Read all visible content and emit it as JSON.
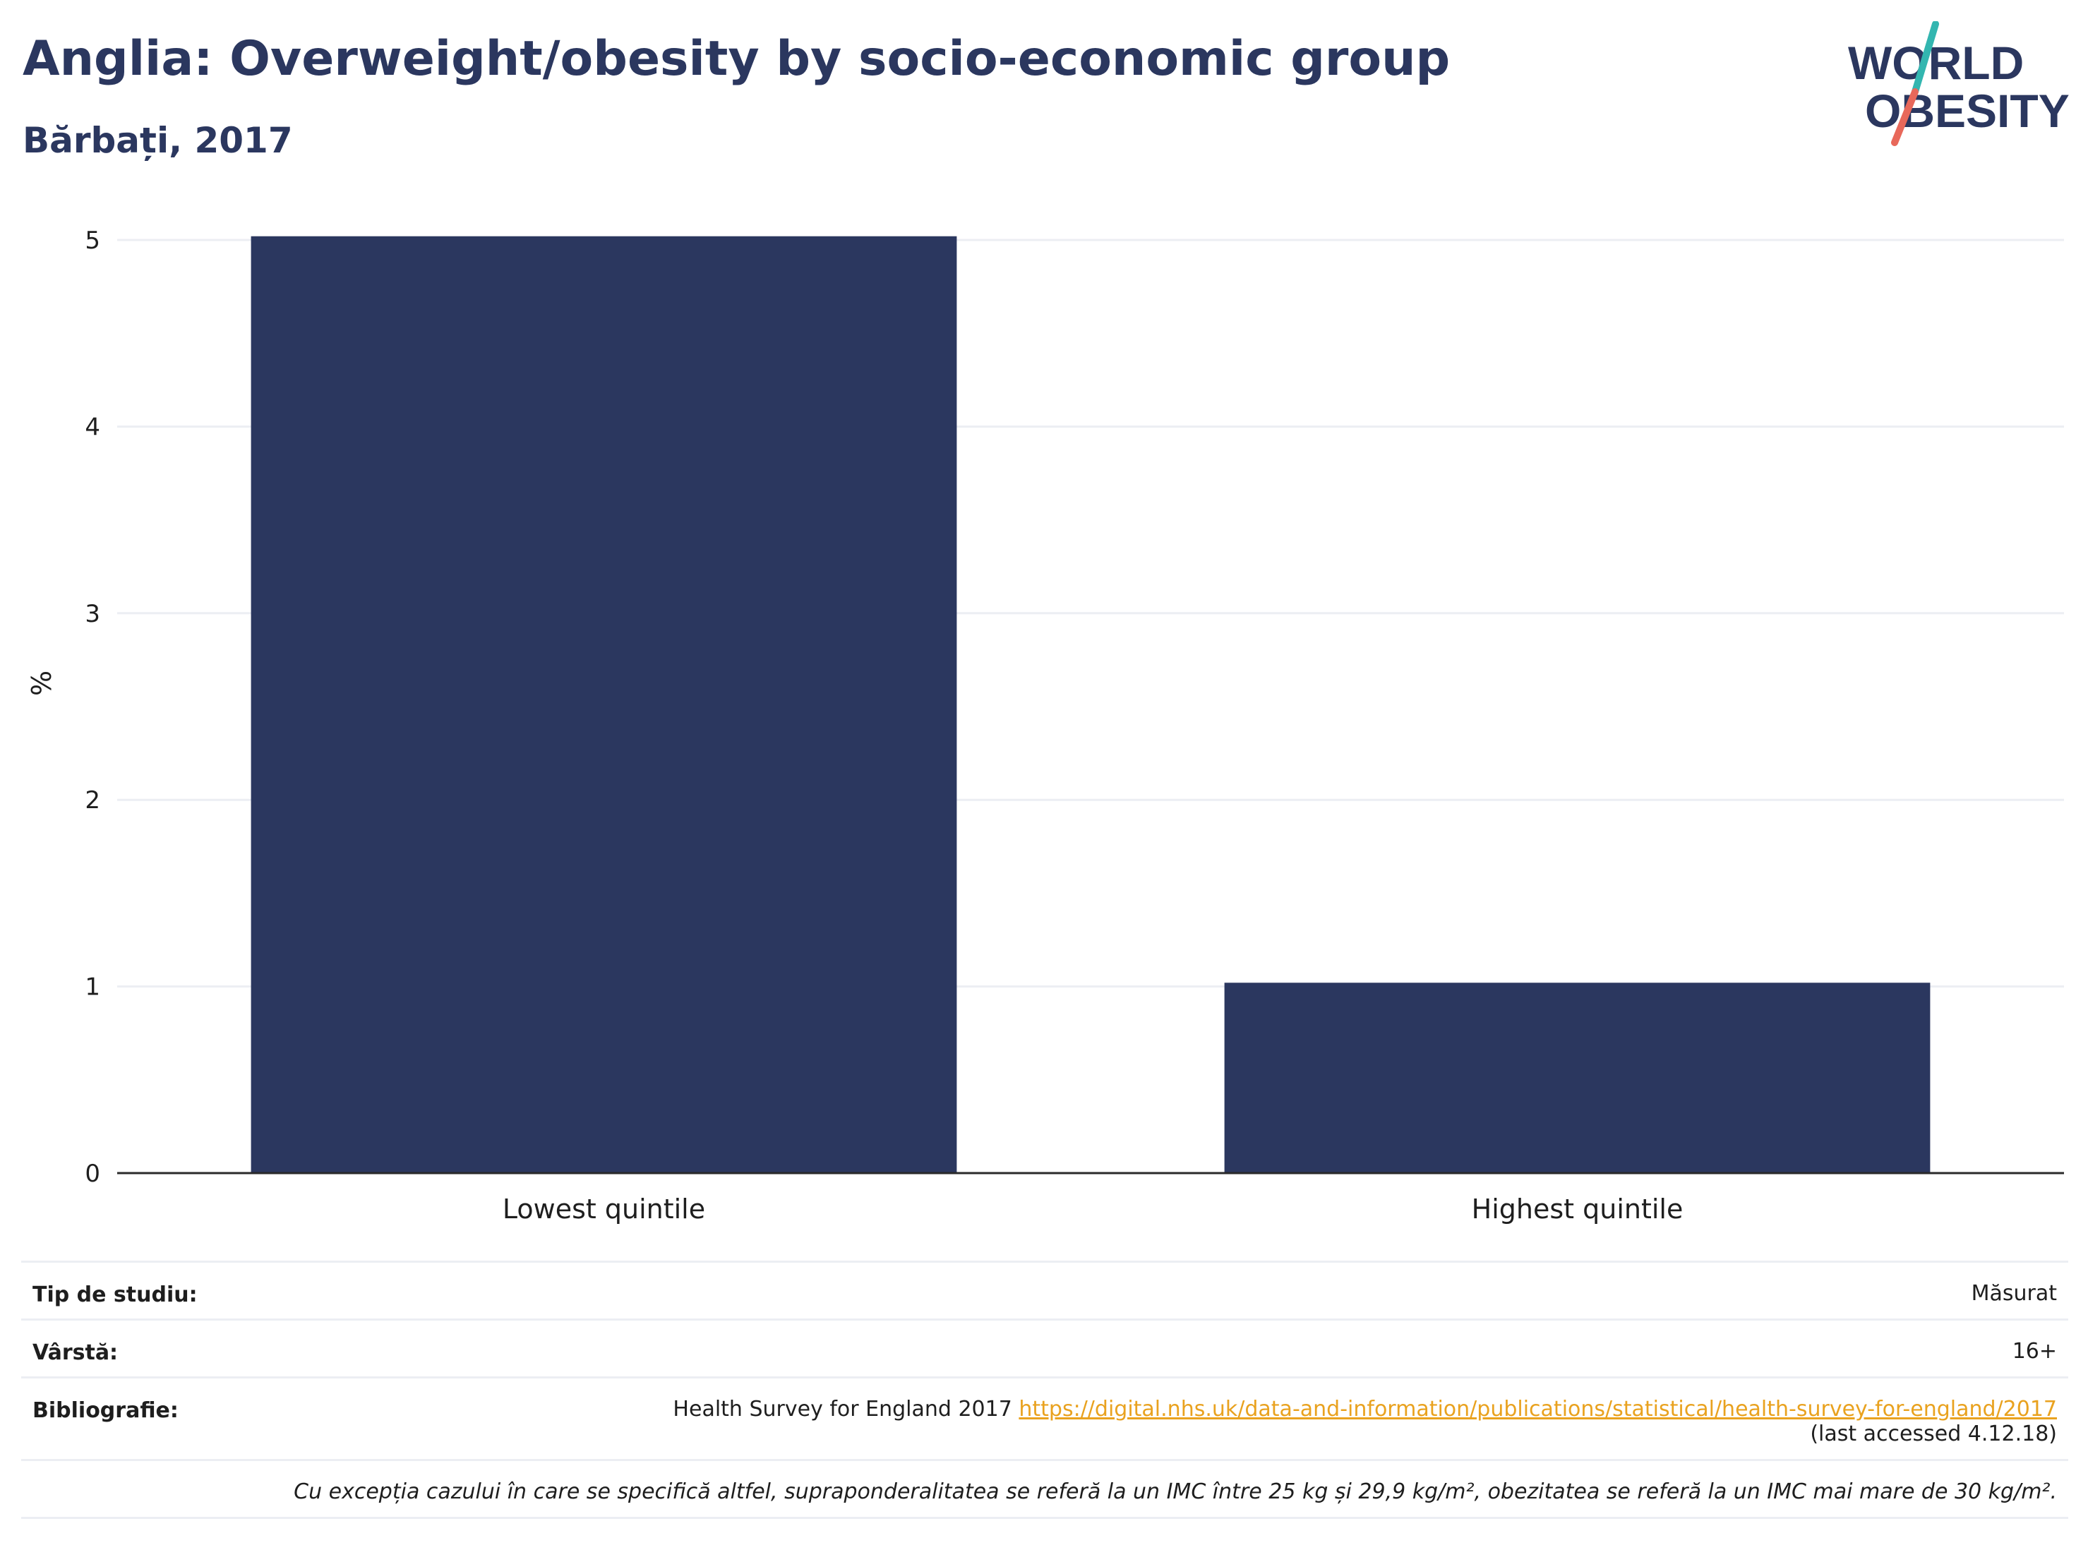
{
  "header": {
    "title": "Anglia: Overweight/obesity by socio-economic group",
    "subtitle": "Bărbați, 2017"
  },
  "logo": {
    "line1": "WORLD",
    "line2": "OBESITY",
    "colors": {
      "text": "#2b375f",
      "slash_top": "#33b6b0",
      "slash_bottom": "#e8685a"
    }
  },
  "chart_data": {
    "type": "bar",
    "title": "Anglia: Overweight/obesity by socio-economic group",
    "subtitle": "Bărbați, 2017",
    "categories": [
      "Lowest quintile",
      "Highest quintile"
    ],
    "values": [
      5.02,
      1.02
    ],
    "ylabel": "%",
    "xlabel": "",
    "ylim": [
      0,
      5
    ],
    "yticks": [
      0,
      1,
      2,
      3,
      4,
      5
    ],
    "grid": true,
    "bar_color": "#2b375f"
  },
  "info": {
    "study_type": {
      "label": "Tip de studiu:",
      "value": "Măsurat"
    },
    "age": {
      "label": "Vârstă:",
      "value": "16+"
    },
    "bibliography": {
      "label": "Bibliografie:",
      "text": "Health Survey for England 2017",
      "url": "https://digital.nhs.uk/data-and-information/publications/statistical/health-survey-for-england/2017",
      "accessed": "(last accessed 4.12.18)"
    },
    "note": "Cu excepția cazului în care se specifică altfel, supraponderalitatea se referă la un IMC între 25 kg și 29,9 kg/m², obezitatea se referă la un IMC mai mare de 30 kg/m²."
  }
}
